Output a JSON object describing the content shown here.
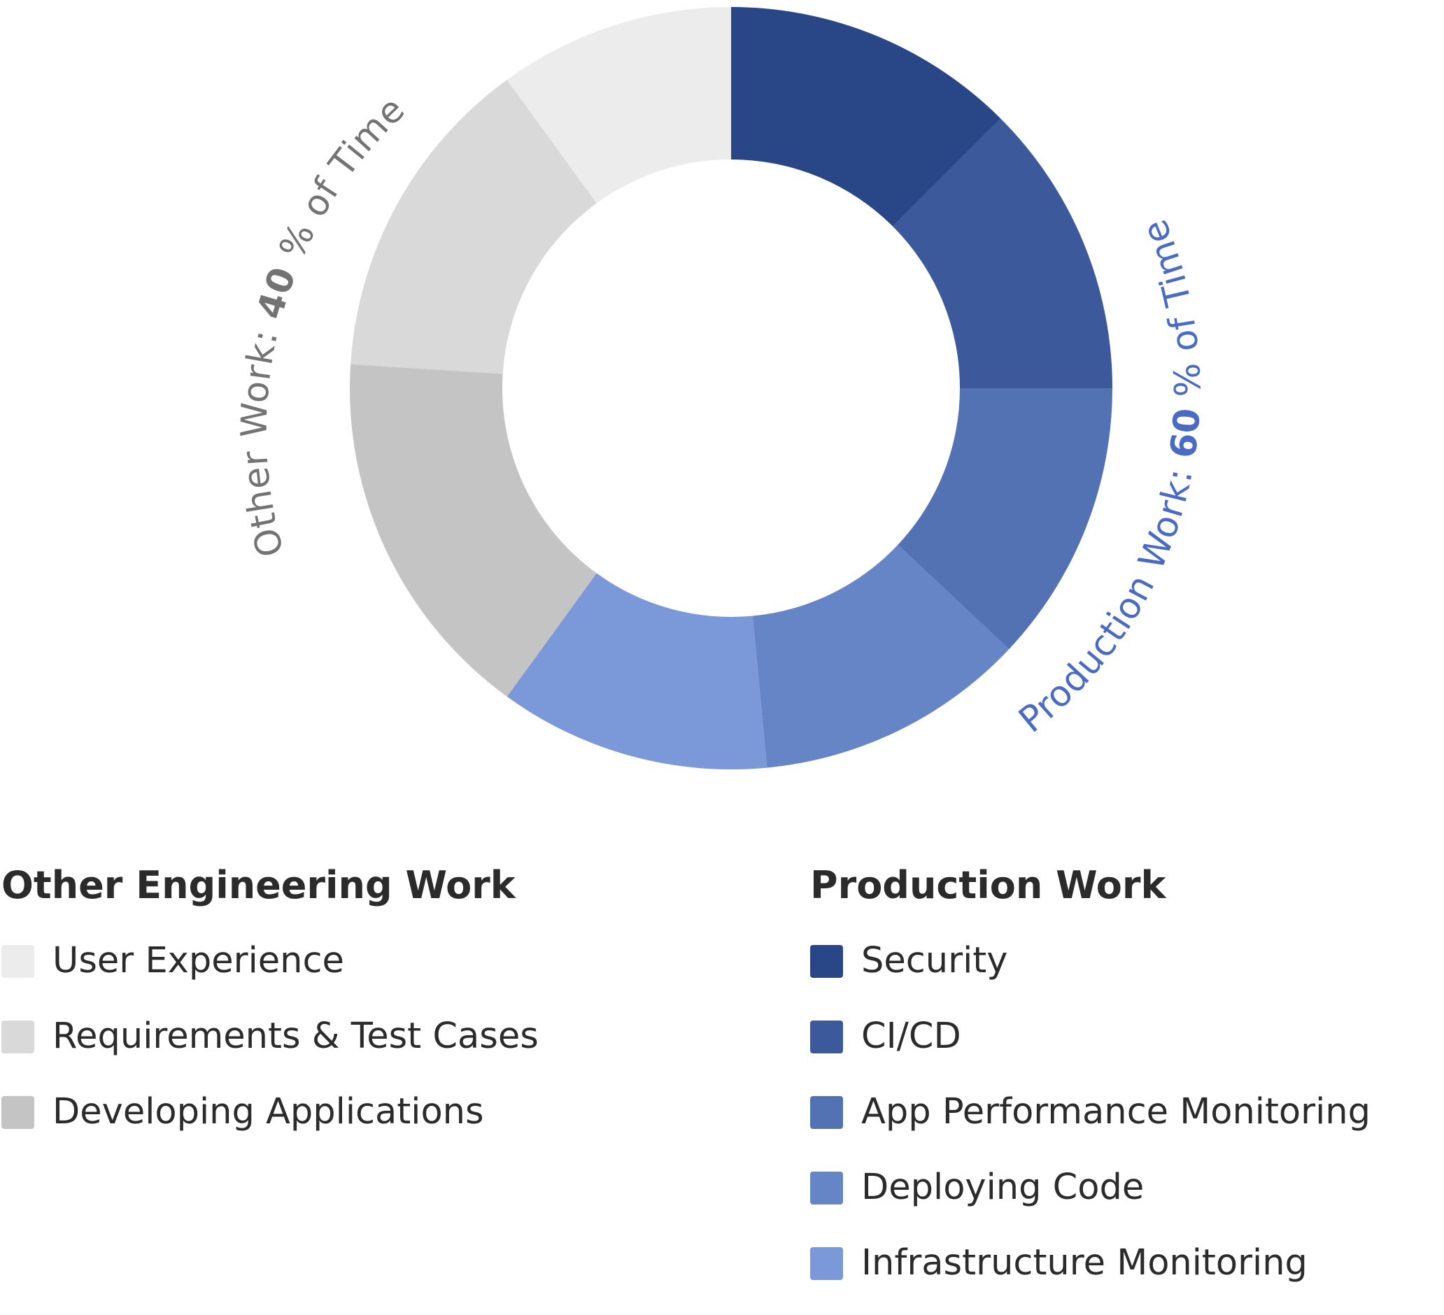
{
  "chart_data": {
    "type": "pie",
    "style": "donut",
    "title": "",
    "groups": [
      {
        "name": "Other Engineering Work",
        "arc_label_prefix": "Other Work: ",
        "arc_label_value": "40",
        "arc_label_suffix": " % of Time",
        "arc_label_color": "#737373",
        "slices": [
          {
            "label": "User Experience",
            "value": 10,
            "color": "#ececec"
          },
          {
            "label": "Requirements & Test Cases",
            "value": 14,
            "color": "#d9d9d9"
          },
          {
            "label": "Developing Applications",
            "value": 16,
            "color": "#c4c4c4"
          }
        ]
      },
      {
        "name": "Production Work",
        "arc_label_prefix": "Production Work: ",
        "arc_label_value": "60",
        "arc_label_suffix": " % of Time",
        "arc_label_color": "#4a6bc4",
        "slices": [
          {
            "label": "Security",
            "value": 12.5,
            "color": "#294786"
          },
          {
            "label": "CI/CD",
            "value": 12.5,
            "color": "#3c5a9b"
          },
          {
            "label": "App Performance Monitoring",
            "value": 12,
            "color": "#5272b4"
          },
          {
            "label": "Deploying Code",
            "value": 11.5,
            "color": "#6685c6"
          },
          {
            "label": "Infrastructure Monitoring",
            "value": 11.5,
            "color": "#7b99d9"
          }
        ]
      }
    ],
    "order_clockwise_from_top": [
      "Security",
      "CI/CD",
      "App Performance Monitoring",
      "Deploying Code",
      "Infrastructure Monitoring",
      "Developing Applications",
      "Requirements & Test Cases",
      "User Experience"
    ]
  },
  "legend": {
    "other": {
      "title": "Other Engineering Work",
      "items": [
        {
          "label": "User Experience",
          "color": "#ececec"
        },
        {
          "label": "Requirements & Test Cases",
          "color": "#d9d9d9"
        },
        {
          "label": "Developing Applications",
          "color": "#c4c4c4"
        }
      ]
    },
    "production": {
      "title": "Production Work",
      "items": [
        {
          "label": "Security",
          "color": "#294786"
        },
        {
          "label": "CI/CD",
          "color": "#3c5a9b"
        },
        {
          "label": "App Performance Monitoring",
          "color": "#5272b4"
        },
        {
          "label": "Deploying Code",
          "color": "#6685c6"
        },
        {
          "label": "Infrastructure Monitoring",
          "color": "#7b99d9"
        }
      ]
    }
  }
}
